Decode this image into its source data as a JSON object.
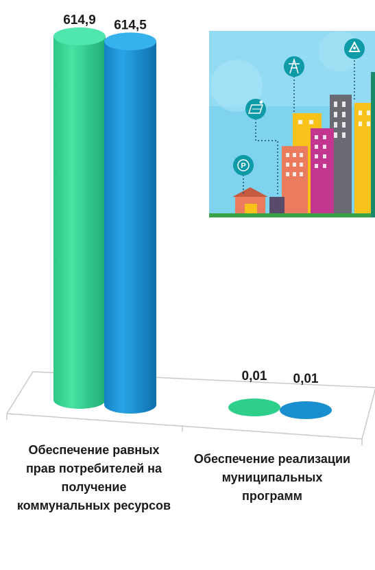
{
  "chart_data": {
    "type": "bar",
    "categories": [
      "Обеспечение равных прав потребителей на получение коммунальных ресурсов",
      "Обеспечение реализации муниципальных программ"
    ],
    "series": [
      {
        "values": [
          614.9,
          0.01
        ],
        "color": "#2ecf8a",
        "labels": [
          "614,9",
          "0,01"
        ]
      },
      {
        "values": [
          614.5,
          0.01
        ],
        "color": "#1a8fd0",
        "labels": [
          "614,5",
          "0,01"
        ]
      }
    ],
    "ylim": [
      0,
      614.9
    ],
    "grid": false,
    "legend": "none"
  },
  "illustration": {
    "icons": [
      "parking-icon",
      "solar-panel-icon",
      "power-tower-icon",
      "recycle-icon"
    ],
    "colors": {
      "sky": "#7fd3ee",
      "building_yellow": "#f7c21a",
      "building_pink": "#c2368f",
      "building_gray": "#6a6a73",
      "building_salmon": "#ea7b5e",
      "icon_teal": "#0f9aa8"
    }
  }
}
